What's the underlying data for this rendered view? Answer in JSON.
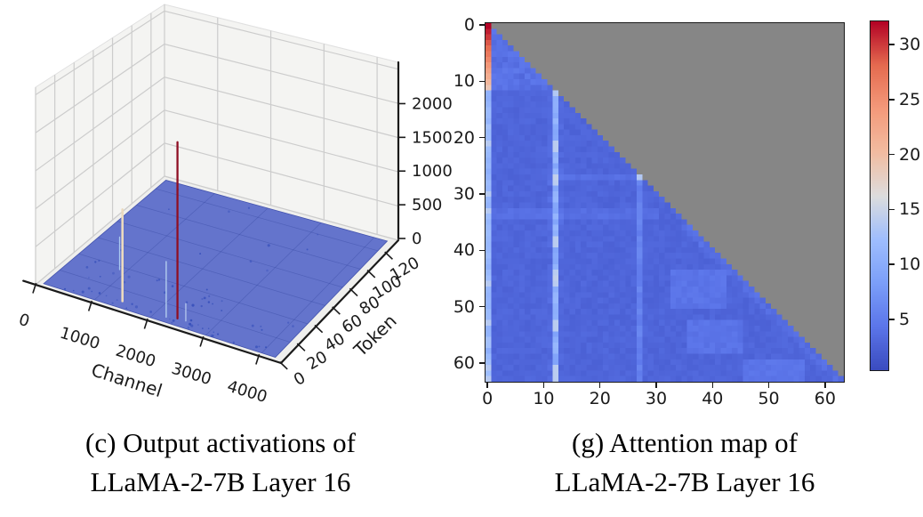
{
  "figure": {
    "left_caption": {
      "line1": "(c) Output activations of",
      "line2": "LLaMA-2-7B Layer 16"
    },
    "right_caption": {
      "line1": "(g) Attention map of",
      "line2": "LLaMA-2-7B Layer 16"
    }
  },
  "chart_data": [
    {
      "id": "output-activations-3d",
      "type": "surface3d",
      "title": "(c) Output activations of LLaMA-2-7B Layer 16",
      "xlabel": "Channel",
      "ylabel": "Token",
      "x_ticks": [
        0,
        1000,
        2000,
        3000,
        4000
      ],
      "y_ticks": [
        0,
        20,
        40,
        60,
        80,
        100,
        120
      ],
      "z_ticks": [
        0,
        500,
        1000,
        1500,
        2000
      ],
      "x_range": [
        0,
        4400
      ],
      "y_range": [
        0,
        134
      ],
      "z_range": [
        0,
        2600
      ],
      "grid": true,
      "surface_color": "#5f70ca",
      "surface_edge_color": "#4353ae",
      "pane_color": "#f4f4f2",
      "grid_color": "#cccccc",
      "base_value": 0,
      "spikes": [
        {
          "channel": 880,
          "token": 37,
          "value": 480,
          "color": "#a9c8f0",
          "w": 1.3
        },
        {
          "channel": 2210,
          "token": 8,
          "value": 820,
          "color": "#b9d3f2",
          "w": 1.3
        },
        {
          "channel": 2530,
          "token": 10,
          "value": 260,
          "color": "#c4d6f4",
          "w": 1.1
        },
        {
          "channel": 1390,
          "token": 10,
          "value": 1350,
          "color": "#ebdabf",
          "w": 2.6
        },
        {
          "channel": 2380,
          "token": 10,
          "value": 2600,
          "color": "#8f0f24",
          "w": 2.3
        }
      ]
    },
    {
      "id": "attention-map",
      "type": "heatmap",
      "title": "(g) Attention map of LLaMA-2-7B Layer 16",
      "size": 64,
      "x_ticks": [
        0,
        10,
        20,
        30,
        40,
        50,
        60
      ],
      "y_ticks": [
        0,
        10,
        20,
        30,
        40,
        50,
        60
      ],
      "colormap": "coolwarm",
      "vmin": 0.3,
      "vmax": 32.2,
      "colorbar_ticks": [
        5,
        10,
        15,
        20,
        25,
        30
      ],
      "mask": "strict-upper-triangle",
      "mask_color": "#868686",
      "base_value": 2.7,
      "noise": 0.45,
      "features": {
        "sink_column": {
          "col": 0,
          "profile": [
            32.4,
            31.2,
            30.2,
            29.0,
            28.0,
            27.0,
            25.8,
            24.5,
            23.2,
            22.0,
            20.8,
            19.0
          ],
          "rest_value": 11.5,
          "rest_variation": 1.2,
          "bright_rows": [
            21,
            30,
            33,
            46,
            53,
            61,
            63
          ],
          "bright_value": 13.8
        },
        "bright_columns": [
          {
            "col": 12,
            "start_row": 12,
            "value": 10.2,
            "variation": 1.4,
            "bright_rows": [
              12,
              21,
              22,
              27,
              28,
              38,
              39,
              44,
              45,
              46,
              53,
              54,
              61,
              62,
              63
            ],
            "bright_value": 14.0
          },
          {
            "col": 27,
            "start_row": 27,
            "value": 5.4,
            "variation": 0.8,
            "bright_rows": [],
            "bright_value": 6.5
          }
        ],
        "notable_cells": [
          {
            "row": 12,
            "col": 12,
            "value": 13.5
          },
          {
            "row": 27,
            "col": 27,
            "value": 13.5
          },
          {
            "row": 27,
            "col": 12,
            "value": 14.5
          },
          {
            "row": 45,
            "col": 12,
            "value": 14.5
          }
        ],
        "light_patches": [
          {
            "rows": [
              44,
              50
            ],
            "cols": [
              33,
              42
            ],
            "value": 4.1
          },
          {
            "rows": [
              53,
              58
            ],
            "cols": [
              36,
              45
            ],
            "value": 4.0
          },
          {
            "rows": [
              60,
              63
            ],
            "cols": [
              46,
              56
            ],
            "value": 4.2
          }
        ]
      }
    }
  ]
}
